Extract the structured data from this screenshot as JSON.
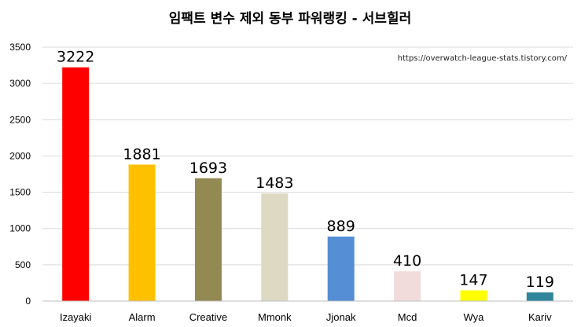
{
  "chart_data": {
    "type": "bar",
    "title": "임팩트 변수 제외 동부 파워랭킹 - 서브힐러",
    "source_text": "https://overwatch-league-stats.tistory.com/",
    "categories": [
      "Izayaki",
      "Alarm",
      "Creative",
      "Mmonk",
      "Jjonak",
      "Mcd",
      "Wya",
      "Kariv"
    ],
    "values": [
      3222,
      1881,
      1693,
      1483,
      889,
      410,
      147,
      119
    ],
    "colors": [
      "#ff0000",
      "#ffc000",
      "#938953",
      "#ddd9c3",
      "#558ed5",
      "#f2dcdb",
      "#ffff00",
      "#31859c"
    ],
    "value_labels": [
      "3222",
      "1881",
      "1693",
      "1483",
      "889",
      "410",
      "147",
      "119"
    ],
    "ylim": [
      0,
      3500
    ],
    "yticks": [
      "0",
      "500",
      "1000",
      "1500",
      "2000",
      "2500",
      "3000",
      "3500"
    ],
    "grid": true,
    "legend": "none"
  }
}
